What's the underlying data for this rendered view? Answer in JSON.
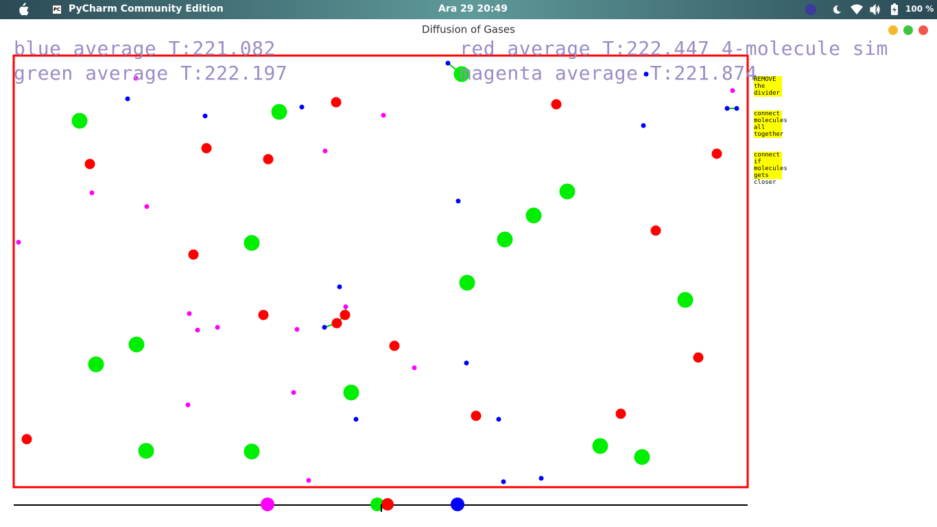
{
  "topbar": {
    "app_name": "PyCharm Community Edition",
    "app_icon_text": "PC",
    "clock": "Ara 29  20:49",
    "battery": "100 %"
  },
  "window": {
    "title": "Diffusion of Gases"
  },
  "hud": {
    "blue": "blue average T:221.082",
    "red": "red average T:222.447 4-molecule sim",
    "green": "green average T:222.197",
    "magenta": "magenta average T:221.874"
  },
  "controls": {
    "remove_divider": [
      "REMOVE",
      "the",
      "divider"
    ],
    "connect_all": [
      "connect",
      "molecules",
      "all",
      "together"
    ],
    "connect_closer": [
      "connect",
      "if",
      "molecules",
      "gets",
      "closer"
    ]
  },
  "colors": {
    "box": "#ff0000",
    "green": "#00ee00",
    "red": "#ff0000",
    "blue": "#0000ff",
    "magenta": "#ff00ff",
    "button_bg": "#ffff00"
  }
}
